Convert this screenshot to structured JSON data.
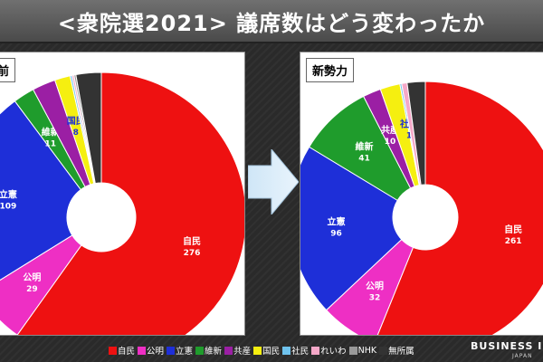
{
  "title": "<衆院選2021> 議席数はどう変わったか",
  "brand": {
    "name": "BUSINESS I",
    "sub": "JAPAN"
  },
  "chart_data": [
    {
      "type": "pie",
      "label": "前",
      "slices": [
        {
          "party": "自民",
          "seats": 276,
          "color": "#ee1111",
          "show_label": true
        },
        {
          "party": "公明",
          "seats": 29,
          "color": "#ee2fc4",
          "show_label": true
        },
        {
          "party": "立憲",
          "seats": 109,
          "color": "#1e2fd8",
          "show_label": true
        },
        {
          "party": "維新",
          "seats": 11,
          "color": "#1f9c2c",
          "show_label": true
        },
        {
          "party": "共産",
          "seats": 12,
          "color": "#9b1fa4",
          "show_label": false
        },
        {
          "party": "国民",
          "seats": 8,
          "color": "#f5ef10",
          "show_label": true
        },
        {
          "party": "社民",
          "seats": 1,
          "color": "#6fc3ee",
          "show_label": false
        },
        {
          "party": "れいわ",
          "seats": 1,
          "color": "#f5a8c8",
          "show_label": false
        },
        {
          "party": "NHK",
          "seats": 1,
          "color": "#9a9a9a",
          "show_label": false
        },
        {
          "party": "無所属",
          "seats": 13,
          "color": "#333333",
          "show_label": false
        }
      ]
    },
    {
      "type": "pie",
      "label": "新勢力",
      "slices": [
        {
          "party": "自民",
          "seats": 261,
          "color": "#ee1111",
          "show_label": true
        },
        {
          "party": "公明",
          "seats": 32,
          "color": "#ee2fc4",
          "show_label": true
        },
        {
          "party": "立憲",
          "seats": 96,
          "color": "#1e2fd8",
          "show_label": true
        },
        {
          "party": "維新",
          "seats": 41,
          "color": "#1f9c2c",
          "show_label": true
        },
        {
          "party": "共産",
          "seats": 10,
          "color": "#9b1fa4",
          "show_label": true
        },
        {
          "party": "国民",
          "seats": 11,
          "color": "#f5ef10",
          "show_label": false
        },
        {
          "party": "社民",
          "seats": 1,
          "color": "#6fc3ee",
          "show_label": true
        },
        {
          "party": "れいわ",
          "seats": 3,
          "color": "#f5a8c8",
          "show_label": false
        },
        {
          "party": "NHK",
          "seats": 0,
          "color": "#9a9a9a",
          "show_label": false
        },
        {
          "party": "無所属",
          "seats": 10,
          "color": "#333333",
          "show_label": false
        }
      ]
    }
  ],
  "legend": [
    {
      "label": "自民",
      "color": "#ee1111"
    },
    {
      "label": "公明",
      "color": "#ee2fc4"
    },
    {
      "label": "立憲",
      "color": "#1e2fd8"
    },
    {
      "label": "維新",
      "color": "#1f9c2c"
    },
    {
      "label": "共産",
      "color": "#9b1fa4"
    },
    {
      "label": "国民",
      "color": "#f5ef10"
    },
    {
      "label": "社民",
      "color": "#6fc3ee"
    },
    {
      "label": "れいわ",
      "color": "#f5a8c8"
    },
    {
      "label": "NHK",
      "color": "#9a9a9a"
    },
    {
      "label": "無所属",
      "color": "#333333"
    }
  ],
  "icons": {
    "arrow": "right-arrow-icon"
  }
}
